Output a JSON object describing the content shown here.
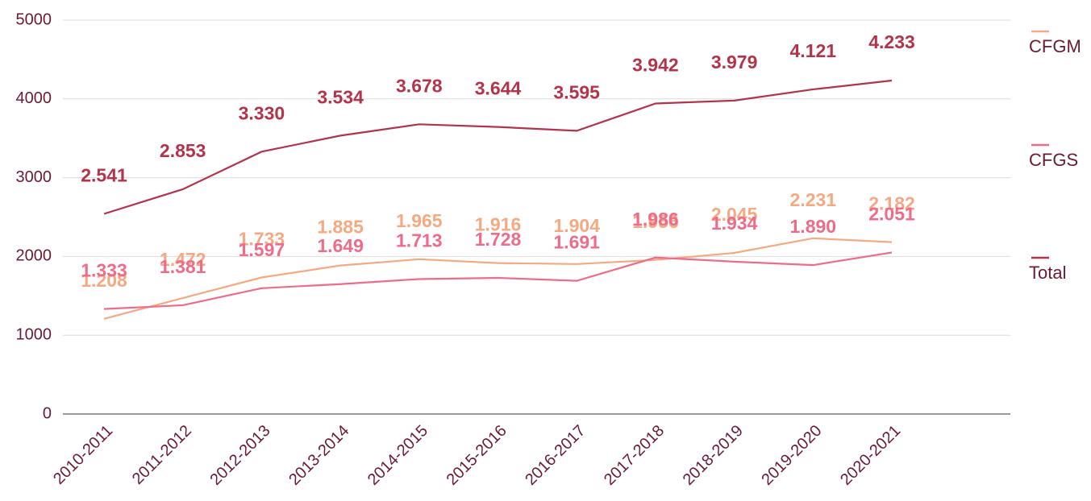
{
  "chart_data": {
    "type": "line",
    "categories": [
      "2010-2011",
      "2011-2012",
      "2012-2013",
      "2013-2014",
      "2014-2015",
      "2015-2016",
      "2016-2017",
      "2017-2018",
      "2018-2019",
      "2019-2020",
      "2020-2021"
    ],
    "series": [
      {
        "name": "CFGM",
        "color": "#f5a982",
        "values": [
          1208,
          1472,
          1733,
          1885,
          1965,
          1916,
          1904,
          1956,
          2045,
          2231,
          2182
        ],
        "value_labels": [
          "1.208",
          "1.472",
          "1.733",
          "1.885",
          "1.965",
          "1.916",
          "1.904",
          "1.956",
          "2.045",
          "2.231",
          "2.182"
        ]
      },
      {
        "name": "CFGS",
        "color": "#ef6c88",
        "values": [
          1333,
          1381,
          1597,
          1649,
          1713,
          1728,
          1691,
          1986,
          1934,
          1890,
          2051
        ],
        "value_labels": [
          "1.333",
          "1.381",
          "1.597",
          "1.649",
          "1.713",
          "1.728",
          "1.691",
          "1.986",
          "1.934",
          "1.890",
          "2.051"
        ]
      },
      {
        "name": "Total",
        "color": "#b3344a",
        "values": [
          2541,
          2853,
          3330,
          3534,
          3678,
          3644,
          3595,
          3942,
          3979,
          4121,
          4233
        ],
        "value_labels": [
          "2.541",
          "2.853",
          "3.330",
          "3.534",
          "3.678",
          "3.644",
          "3.595",
          "3.942",
          "3.979",
          "4.121",
          "4.233"
        ]
      }
    ],
    "ylim": [
      0,
      5000
    ],
    "yticks": [
      0,
      1000,
      2000,
      3000,
      4000,
      5000
    ],
    "grid": true,
    "legend": "right"
  }
}
